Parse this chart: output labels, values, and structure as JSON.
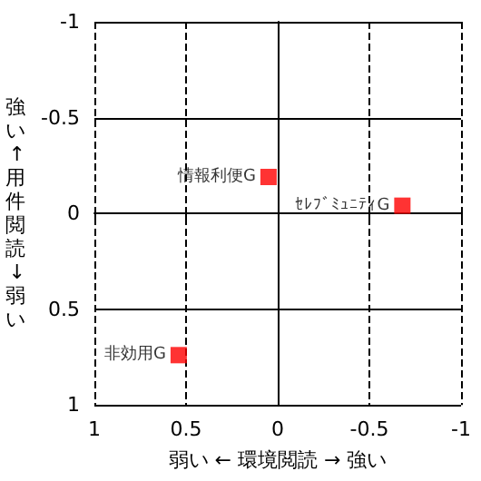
{
  "chart_data": {
    "type": "scatter",
    "xlabel": "弱い ← 環境閲読 → 強い",
    "ylabel": "強い↑用件閲読↓弱い",
    "x": [
      0.05,
      -0.68,
      0.54
    ],
    "series": [
      {
        "color": "#ff0000",
        "values": [
          -0.19,
          -0.04,
          0.74
        ]
      }
    ],
    "marker": "square",
    "xlim": [
      1,
      -1
    ],
    "xticks": [
      1,
      0.5,
      0,
      -0.5,
      -1
    ],
    "ylim": [
      1,
      -1
    ],
    "yticks": [
      -1,
      -0.5,
      0,
      0.5,
      1
    ],
    "grid": true,
    "annotations": [
      {
        "text": "情報利便G",
        "x": 0.05,
        "y": -0.19
      },
      {
        "text": "ｾﾚﾌﾞﾐｭﾆﾃｨG",
        "x": -0.68,
        "y": -0.04
      },
      {
        "text": "非効用G",
        "x": 0.54,
        "y": 0.74
      }
    ]
  }
}
